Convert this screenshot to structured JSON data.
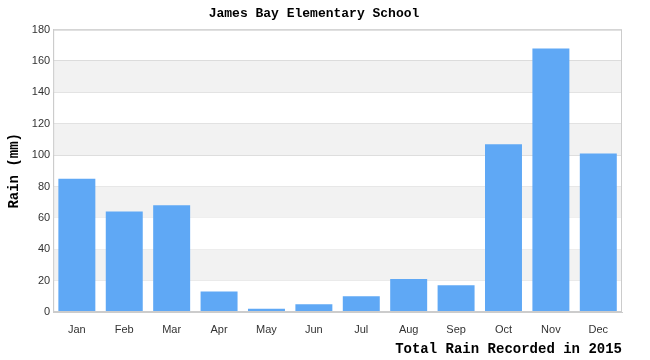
{
  "chart_data": {
    "type": "bar",
    "title": "James Bay Elementary School",
    "x_label": "Total Rain Recorded in 2015",
    "y_label": "Rain (mm)",
    "categories": [
      "Jan",
      "Feb",
      "Mar",
      "Apr",
      "May",
      "Jun",
      "Jul",
      "Aug",
      "Sep",
      "Oct",
      "Nov",
      "Dec"
    ],
    "values": [
      85,
      64,
      68,
      13,
      2,
      5,
      10,
      21,
      17,
      107,
      168,
      101
    ],
    "color": "#5fa8f5",
    "ylim": [
      0,
      180
    ],
    "yticks": [
      0,
      20,
      40,
      60,
      80,
      100,
      120,
      140,
      160,
      180
    ],
    "grid": true
  }
}
